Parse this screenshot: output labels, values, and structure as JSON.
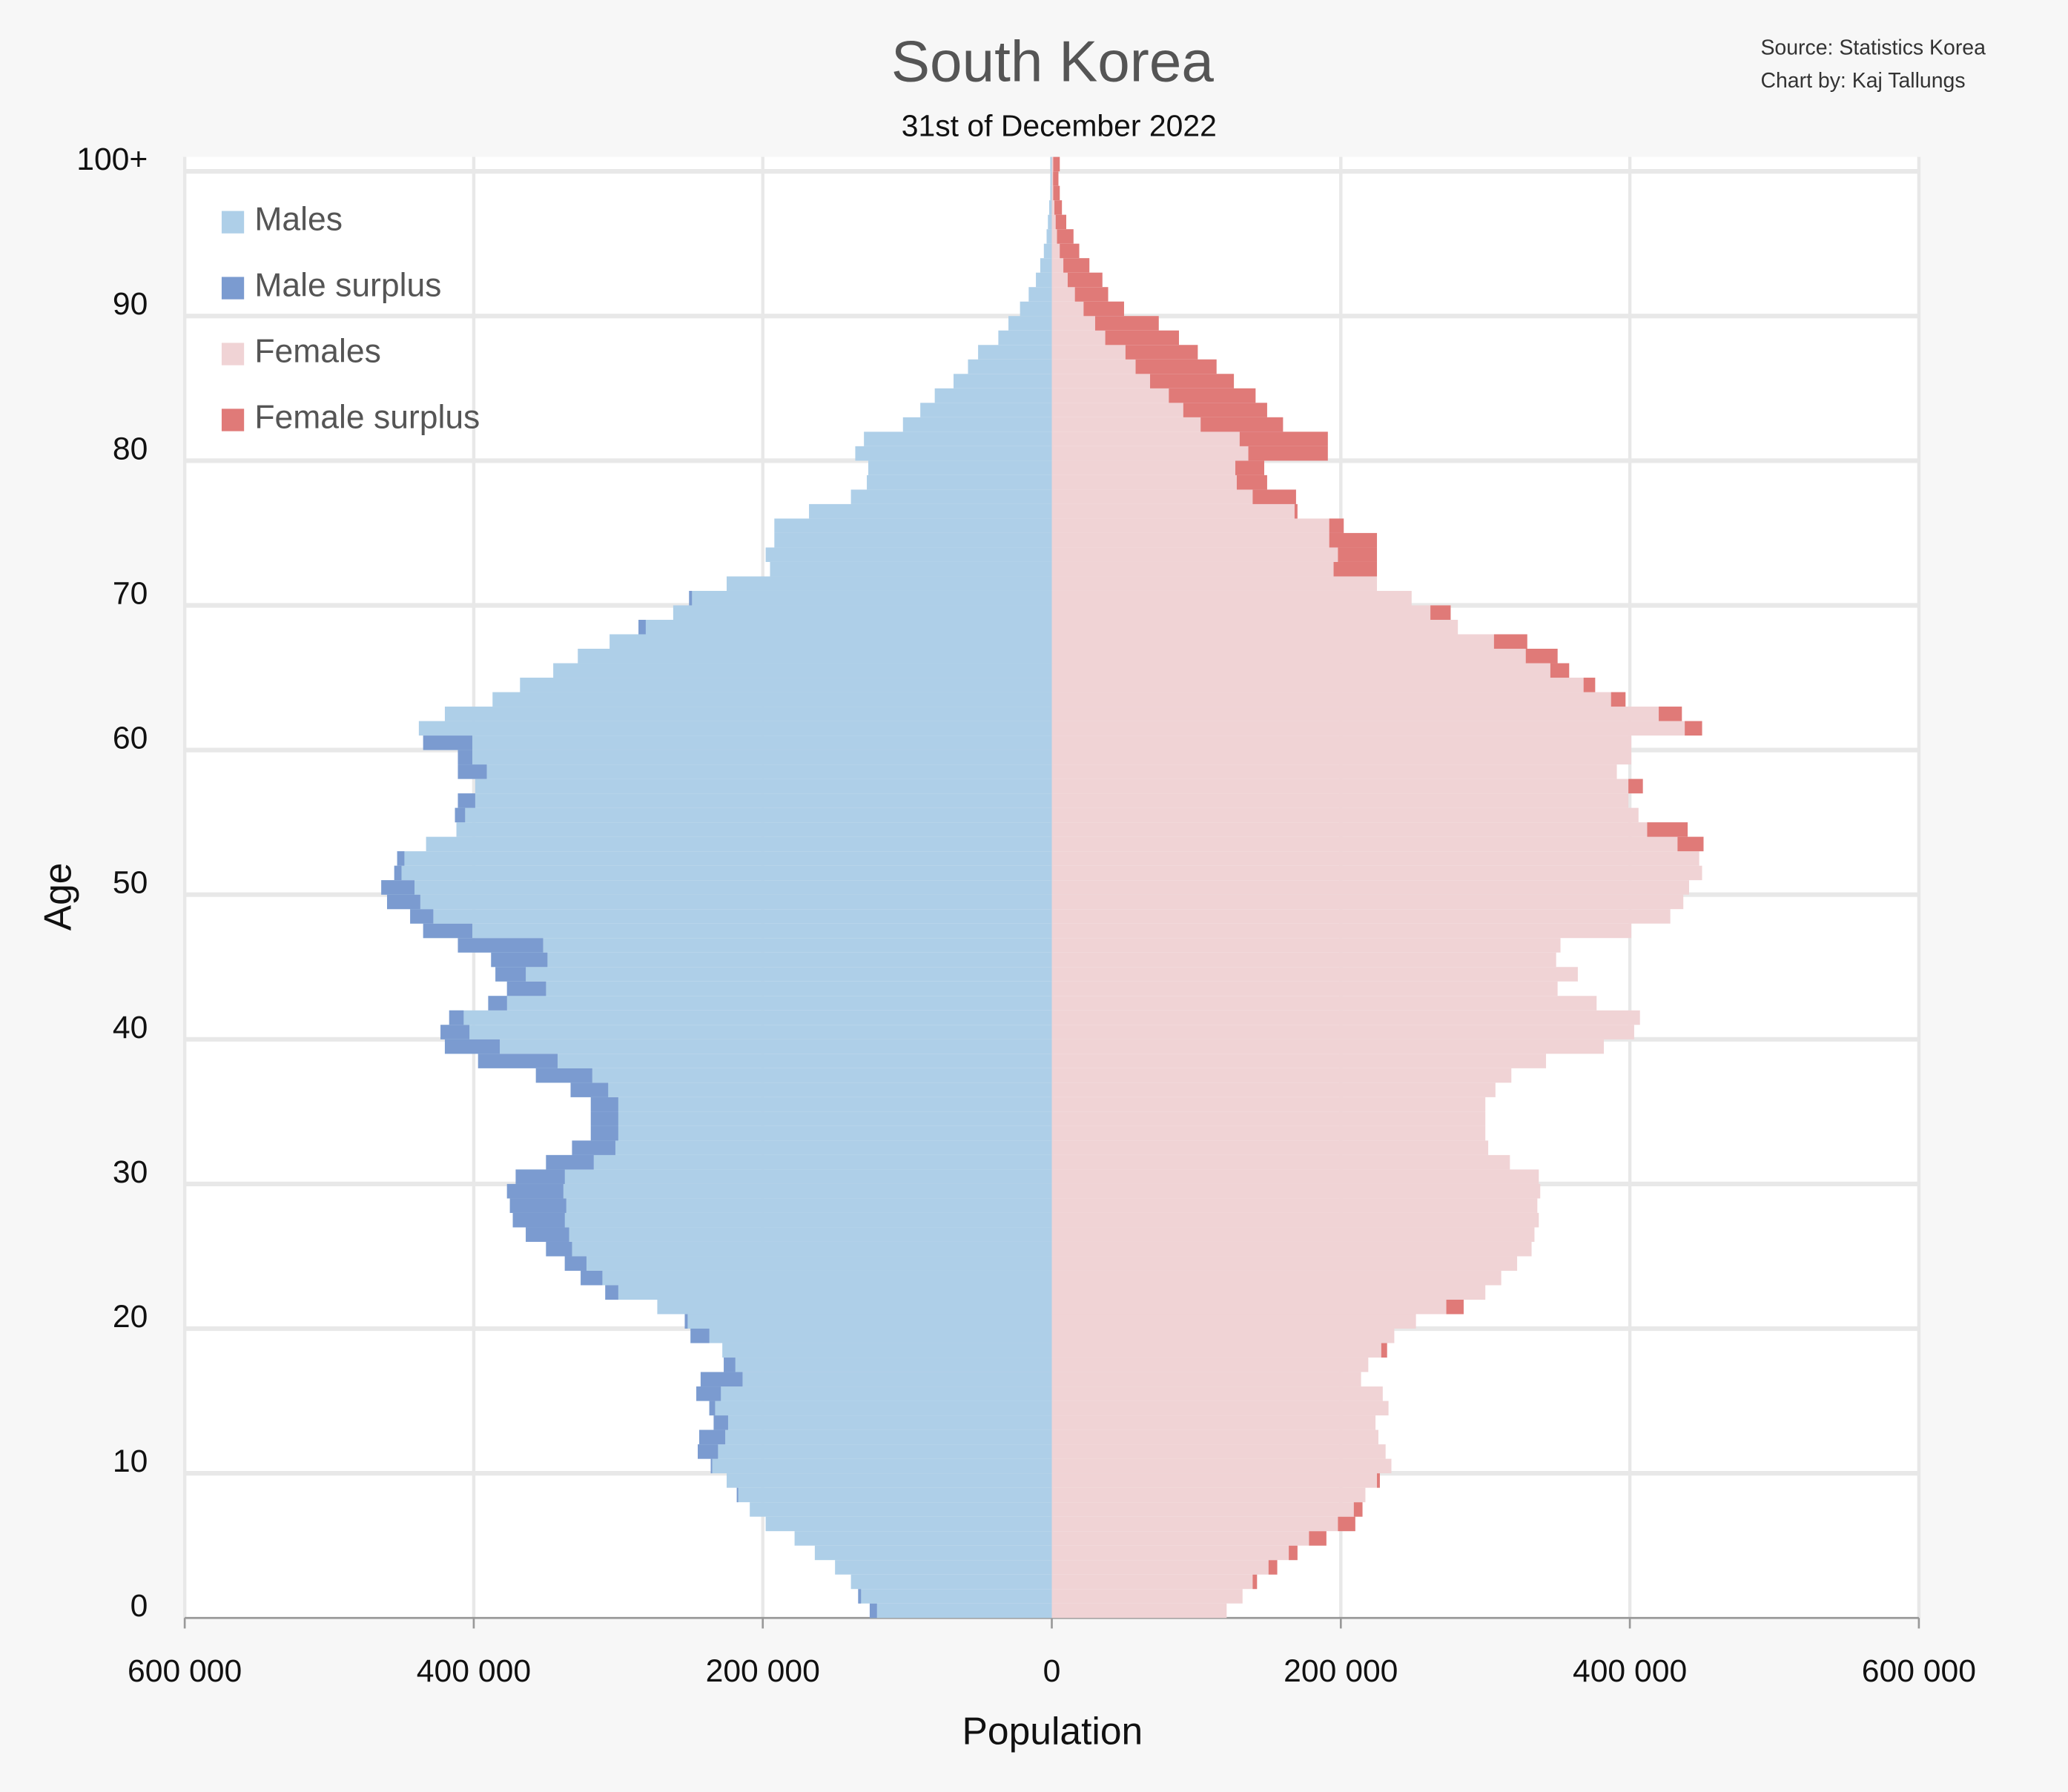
{
  "chart_data": {
    "type": "pyramid",
    "title": "South Korea",
    "subtitle": "31st of December 2022",
    "source": [
      "Source: Statistics Korea",
      "Chart by: Kaj Tallungs"
    ],
    "x_label": "Population",
    "y_label": "Age",
    "categories": [
      "0",
      null,
      null,
      null,
      null,
      null,
      null,
      null,
      null,
      null,
      "10",
      null,
      null,
      null,
      null,
      null,
      null,
      null,
      null,
      null,
      "20",
      null,
      null,
      null,
      null,
      null,
      null,
      null,
      null,
      null,
      "30",
      null,
      null,
      null,
      null,
      null,
      null,
      null,
      null,
      null,
      "40",
      null,
      null,
      null,
      null,
      null,
      null,
      null,
      null,
      null,
      "50",
      null,
      null,
      null,
      null,
      null,
      null,
      null,
      null,
      null,
      "60",
      null,
      null,
      null,
      null,
      null,
      null,
      null,
      null,
      null,
      "70",
      null,
      null,
      null,
      null,
      null,
      null,
      null,
      null,
      null,
      "80",
      null,
      null,
      null,
      null,
      null,
      null,
      null,
      null,
      null,
      "90",
      null,
      null,
      null,
      null,
      null,
      null,
      null,
      null,
      null,
      "100+"
    ],
    "series": [
      {
        "name": "Males",
        "color": "#aecfe8",
        "side": "left",
        "values": [
          126000,
          134000,
          139000,
          150000,
          164000,
          178000,
          198000,
          209000,
          218000,
          225000,
          236000,
          245000,
          244000,
          234000,
          237000,
          246000,
          243000,
          227000,
          228000,
          250000,
          254000,
          273000,
          309000,
          326000,
          337000,
          350000,
          364000,
          373000,
          375000,
          377000,
          371000,
          350000,
          332000,
          319000,
          319000,
          319000,
          333000,
          357000,
          397000,
          420000,
          423000,
          417000,
          390000,
          377000,
          385000,
          388000,
          411000,
          435000,
          444000,
          460000,
          464000,
          455000,
          453000,
          433000,
          412000,
          413000,
          411000,
          399000,
          411000,
          411000,
          435000,
          438000,
          420000,
          387000,
          368000,
          345000,
          328000,
          306000,
          286000,
          262000,
          251000,
          225000,
          195000,
          198000,
          192000,
          192000,
          168000,
          139000,
          128000,
          127000,
          136000,
          130000,
          103000,
          91000,
          81000,
          68000,
          58000,
          51000,
          37000,
          30000,
          22000,
          16000,
          11000,
          8000,
          5500,
          3600,
          2700,
          1800,
          1000,
          900,
          1000
        ]
      },
      {
        "name": "Females",
        "color": "#f0d3d5",
        "side": "right",
        "values": [
          121000,
          132000,
          142000,
          156000,
          170000,
          190000,
          210000,
          215000,
          217000,
          227000,
          235000,
          231000,
          226000,
          224000,
          233000,
          229000,
          214000,
          219000,
          232000,
          237000,
          252000,
          285000,
          300000,
          311000,
          322000,
          332000,
          334000,
          337000,
          336000,
          338000,
          337000,
          317000,
          302000,
          300000,
          300000,
          300000,
          307000,
          318000,
          342000,
          382000,
          403000,
          407000,
          377000,
          350000,
          364000,
          349000,
          352000,
          401000,
          428000,
          437000,
          441000,
          450000,
          448000,
          451000,
          440000,
          406000,
          399000,
          409000,
          391000,
          401000,
          401000,
          450000,
          436000,
          397000,
          376000,
          358000,
          350000,
          329000,
          281000,
          276000,
          249000,
          225000,
          225000,
          225000,
          225000,
          202000,
          170000,
          169000,
          149000,
          147000,
          191000,
          191000,
          160000,
          149000,
          141000,
          126000,
          114000,
          101000,
          88000,
          74000,
          50000,
          39000,
          35000,
          26000,
          19000,
          15000,
          10000,
          7000,
          5500,
          4600,
          5500
        ]
      }
    ],
    "surplus": [
      {
        "name": "Male surplus",
        "color": "#7b9bd0"
      },
      {
        "name": "Female surplus",
        "color": "#e07a78"
      }
    ],
    "legend_order": [
      [
        "series",
        0
      ],
      [
        "surplus",
        0
      ],
      [
        "series",
        1
      ],
      [
        "surplus",
        1
      ]
    ],
    "legend": "upper left",
    "xlim": [
      -600000,
      600000
    ],
    "xticks": [
      {
        "value": -600000,
        "label": "600 000"
      },
      {
        "value": -400000,
        "label": "400 000"
      },
      {
        "value": -200000,
        "label": "200 000"
      },
      0,
      {
        "value": 200000,
        "label": "200 000"
      },
      {
        "value": 400000,
        "label": "400 000"
      },
      {
        "value": 600000,
        "label": "600 000"
      }
    ],
    "grid": true
  }
}
